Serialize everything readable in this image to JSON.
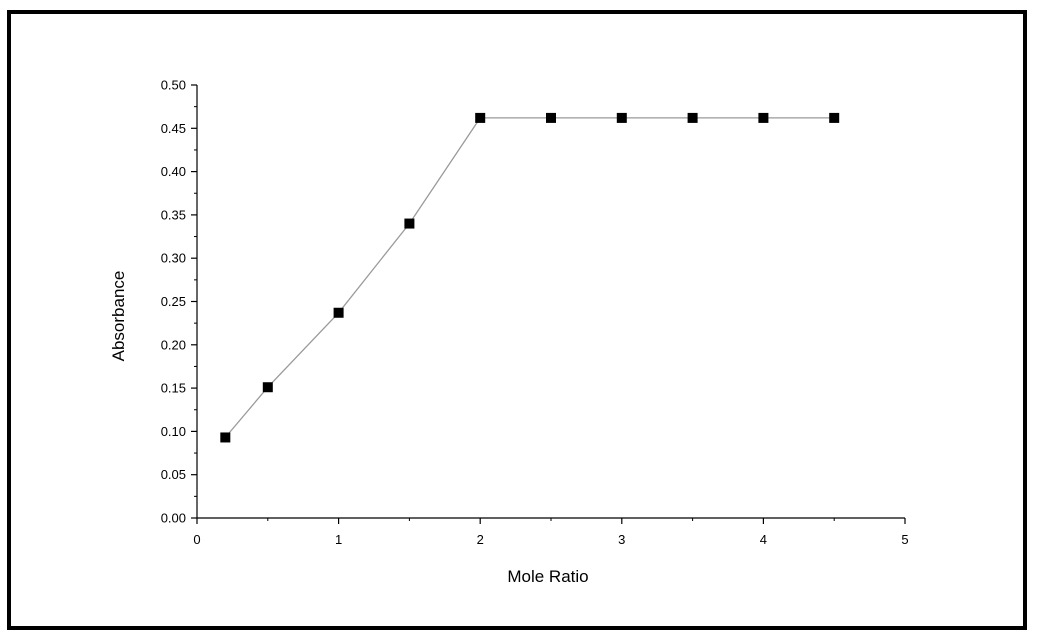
{
  "chart_data": {
    "type": "line",
    "title": "",
    "xlabel": "Mole Ratio",
    "ylabel": "Absorbance",
    "xlim": [
      0,
      5
    ],
    "ylim": [
      0,
      0.5
    ],
    "x_ticks": [
      0,
      1,
      2,
      3,
      4,
      5
    ],
    "x_tick_labels": [
      "0",
      "1",
      "2",
      "3",
      "4",
      "5"
    ],
    "y_ticks": [
      0,
      0.05,
      0.1,
      0.15,
      0.2,
      0.25,
      0.3,
      0.35,
      0.4,
      0.45,
      0.5
    ],
    "y_tick_labels": [
      "0.00",
      "0.05",
      "0.10",
      "0.15",
      "0.20",
      "0.25",
      "0.30",
      "0.35",
      "0.40",
      "0.45",
      "0.50"
    ],
    "grid": false,
    "legend": "none",
    "series": [
      {
        "x": [
          0.2,
          0.5,
          1.0,
          1.5,
          2.0,
          2.5,
          3.0,
          3.5,
          4.0,
          4.5
        ],
        "y": [
          0.093,
          0.151,
          0.237,
          0.34,
          0.462,
          0.462,
          0.462,
          0.462,
          0.462,
          0.462
        ],
        "marker": "square",
        "line_color": "#9a9a9a",
        "marker_color": "#000000"
      }
    ]
  }
}
